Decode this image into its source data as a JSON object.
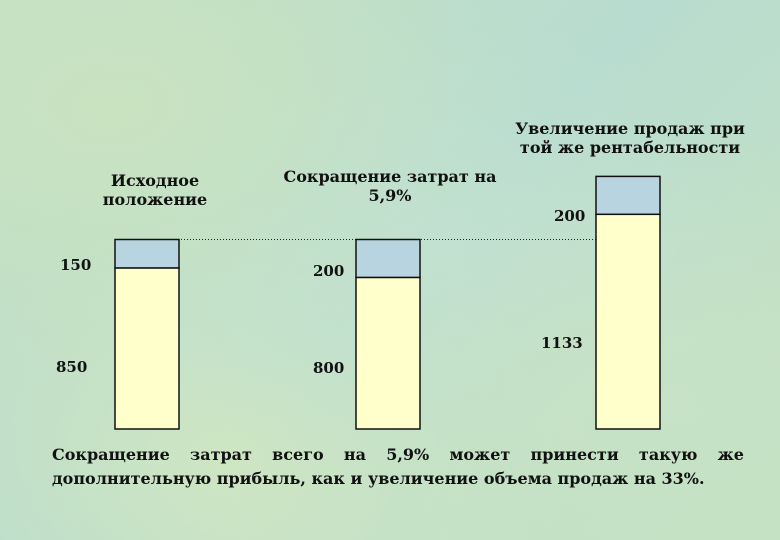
{
  "chart_data": {
    "type": "bar",
    "stacked": true,
    "categories": [
      "Исходное положение",
      "Сокращение затрат на 5,9%",
      "Увеличение продаж при той же рентабельности"
    ],
    "category_lines": [
      [
        "Исходное",
        "положение"
      ],
      [
        "Сокращение затрат на",
        "5,9%"
      ],
      [
        "Увеличение продаж при",
        "той же рентабельности"
      ]
    ],
    "series": [
      {
        "role": "base",
        "values": [
          850,
          800,
          1133
        ],
        "color": "#ffffcc"
      },
      {
        "role": "top",
        "values": [
          150,
          200,
          200
        ],
        "color": "#b9d4e1"
      }
    ],
    "labels": {
      "base": [
        "850",
        "800",
        "1133"
      ],
      "top": [
        "150",
        "200",
        "200"
      ]
    },
    "reference_line_value": 1000,
    "grid": false,
    "legend": "none"
  },
  "footer": {
    "line1_words": [
      "Сокращение",
      "затрат",
      "всего",
      "на",
      "5,9%",
      "может",
      "принести",
      "такую",
      "же"
    ],
    "line2": "дополнительную прибыль, как и увеличение объема продаж на 33%."
  }
}
